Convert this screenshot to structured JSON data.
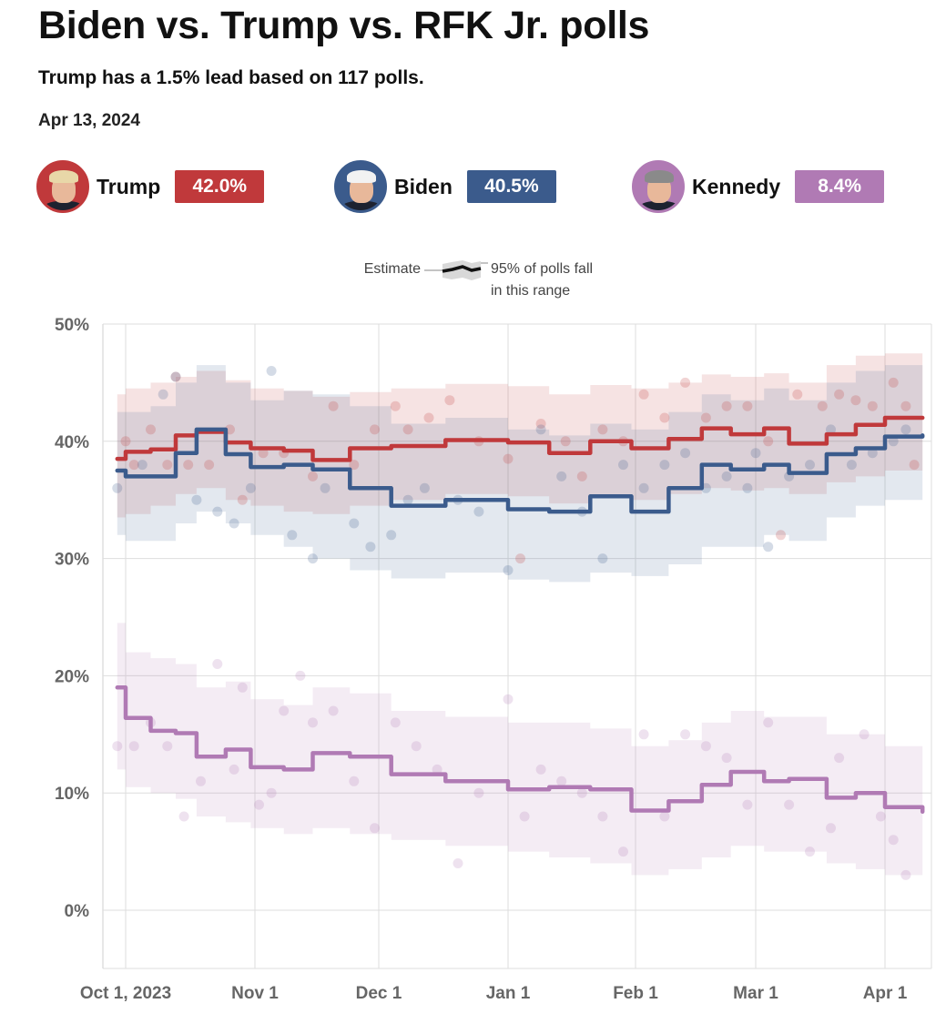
{
  "header": {
    "title": "Biden vs. Trump vs. RFK Jr. polls",
    "subtitle": "Trump has a 1.5% lead based on 117 polls.",
    "date": "Apr 13, 2024"
  },
  "candidates": [
    {
      "name": "Trump",
      "value_label": "42.0%",
      "color": "#c0393b",
      "hair": "#e8d7a8"
    },
    {
      "name": "Biden",
      "value_label": "40.5%",
      "color": "#3b5b8c",
      "hair": "#f2f2f2"
    },
    {
      "name": "Kennedy",
      "value_label": "8.4%",
      "color": "#b07ab4",
      "hair": "#8a8a8a"
    }
  ],
  "legend": {
    "estimate": "Estimate",
    "range_line1": "95% of polls fall",
    "range_line2": "in this range"
  },
  "chart_data": {
    "type": "line",
    "title": "Biden vs. Trump vs. RFK Jr. polls",
    "xlabel": "",
    "ylabel": "",
    "ylim": [
      -5,
      50
    ],
    "y_ticks": [
      0,
      10,
      20,
      30,
      40,
      50
    ],
    "y_tick_labels": [
      "0%",
      "10%",
      "20%",
      "30%",
      "40%",
      "50%"
    ],
    "x_range_days": [
      -2,
      192
    ],
    "x_ticks": [
      {
        "day": 0,
        "label": "Oct 1, 2023"
      },
      {
        "day": 31,
        "label": "Nov 1"
      },
      {
        "day": 61,
        "label": "Dec 1"
      },
      {
        "day": 92,
        "label": "Jan 1"
      },
      {
        "day": 123,
        "label": "Feb 1"
      },
      {
        "day": 152,
        "label": "Mar 1"
      },
      {
        "day": 183,
        "label": "Apr 1"
      }
    ],
    "series": [
      {
        "name": "Trump",
        "color": "#c0393b",
        "final": 42.0,
        "x": [
          -2,
          0,
          6,
          12,
          17,
          24,
          30,
          38,
          45,
          54,
          64,
          77,
          92,
          102,
          112,
          122,
          131,
          139,
          146,
          154,
          160,
          169,
          176,
          183,
          192
        ],
        "estimate": [
          38.5,
          39.1,
          39.3,
          40.5,
          40.8,
          39.9,
          39.4,
          39.2,
          38.4,
          39.4,
          39.6,
          40.1,
          39.9,
          39.0,
          40.0,
          39.4,
          40.2,
          41.1,
          40.6,
          41.1,
          39.8,
          40.6,
          41.4,
          42.0,
          42.0
        ],
        "lower": [
          33.5,
          33.8,
          34.5,
          35.5,
          36.0,
          35.0,
          34.5,
          34.0,
          33.8,
          34.5,
          35.0,
          35.5,
          35.3,
          34.7,
          35.2,
          35.0,
          35.5,
          36.0,
          35.8,
          36.0,
          35.5,
          36.5,
          37.0,
          37.5,
          37.5
        ],
        "upper": [
          44.0,
          44.5,
          45.0,
          45.5,
          46.0,
          45.2,
          44.5,
          44.3,
          43.8,
          44.2,
          44.5,
          44.9,
          44.7,
          44.0,
          44.8,
          44.5,
          45.0,
          45.7,
          45.5,
          45.8,
          45.0,
          46.5,
          47.3,
          47.5,
          47.5
        ],
        "polls": [
          [
            0,
            40
          ],
          [
            2,
            38
          ],
          [
            6,
            41
          ],
          [
            10,
            38
          ],
          [
            12,
            45.5
          ],
          [
            15,
            38
          ],
          [
            20,
            38
          ],
          [
            25,
            41
          ],
          [
            28,
            35
          ],
          [
            33,
            39
          ],
          [
            38,
            39
          ],
          [
            45,
            37
          ],
          [
            50,
            43
          ],
          [
            55,
            38
          ],
          [
            60,
            41
          ],
          [
            65,
            43
          ],
          [
            68,
            41
          ],
          [
            73,
            42
          ],
          [
            78,
            43.5
          ],
          [
            85,
            40
          ],
          [
            92,
            38.5
          ],
          [
            95,
            30
          ],
          [
            100,
            41.5
          ],
          [
            106,
            40
          ],
          [
            110,
            37
          ],
          [
            115,
            41
          ],
          [
            120,
            40
          ],
          [
            125,
            44
          ],
          [
            130,
            42
          ],
          [
            135,
            45
          ],
          [
            140,
            42
          ],
          [
            145,
            43
          ],
          [
            150,
            43
          ],
          [
            155,
            40
          ],
          [
            158,
            32
          ],
          [
            162,
            44
          ],
          [
            168,
            43
          ],
          [
            172,
            44
          ],
          [
            176,
            43.5
          ],
          [
            180,
            43
          ],
          [
            185,
            45
          ],
          [
            188,
            43
          ],
          [
            190,
            38
          ]
        ]
      },
      {
        "name": "Biden",
        "color": "#3b5b8c",
        "final": 40.5,
        "x": [
          -2,
          0,
          6,
          12,
          17,
          24,
          30,
          38,
          45,
          54,
          64,
          77,
          92,
          102,
          112,
          122,
          131,
          139,
          146,
          154,
          160,
          169,
          176,
          183,
          192
        ],
        "estimate": [
          37.5,
          37.0,
          37.0,
          39.0,
          41.0,
          38.9,
          37.8,
          38.0,
          37.6,
          36.0,
          34.5,
          35.0,
          34.2,
          34.0,
          35.3,
          34.0,
          36.0,
          38.0,
          37.6,
          38.0,
          37.3,
          38.9,
          39.4,
          40.4,
          40.5
        ],
        "lower": [
          32.0,
          31.5,
          31.5,
          33.0,
          34.0,
          33.0,
          32.0,
          31.0,
          30.0,
          29.0,
          28.3,
          28.8,
          28.2,
          28.0,
          28.8,
          28.5,
          29.5,
          31.0,
          31.0,
          32.0,
          31.5,
          33.5,
          34.5,
          35.0,
          35.0
        ],
        "upper": [
          42.5,
          42.5,
          43.0,
          45.0,
          46.5,
          45.0,
          43.5,
          44.3,
          44.0,
          43.0,
          41.5,
          42.0,
          41.0,
          40.5,
          41.5,
          41.0,
          42.5,
          44.0,
          43.5,
          44.5,
          43.5,
          45.0,
          46.0,
          46.5,
          46.5
        ],
        "polls": [
          [
            -2,
            36
          ],
          [
            4,
            38
          ],
          [
            9,
            44
          ],
          [
            12,
            45.5
          ],
          [
            17,
            35
          ],
          [
            22,
            34
          ],
          [
            26,
            33
          ],
          [
            30,
            36
          ],
          [
            35,
            46
          ],
          [
            40,
            32
          ],
          [
            45,
            30
          ],
          [
            48,
            36
          ],
          [
            55,
            33
          ],
          [
            59,
            31
          ],
          [
            64,
            32
          ],
          [
            68,
            35
          ],
          [
            72,
            36
          ],
          [
            80,
            35
          ],
          [
            85,
            34
          ],
          [
            92,
            29
          ],
          [
            100,
            41
          ],
          [
            105,
            37
          ],
          [
            110,
            34
          ],
          [
            115,
            30
          ],
          [
            120,
            38
          ],
          [
            125,
            36
          ],
          [
            130,
            38
          ],
          [
            135,
            39
          ],
          [
            140,
            36
          ],
          [
            145,
            37
          ],
          [
            150,
            36
          ],
          [
            152,
            39
          ],
          [
            155,
            31
          ],
          [
            160,
            37
          ],
          [
            165,
            38
          ],
          [
            170,
            41
          ],
          [
            175,
            38
          ],
          [
            180,
            39
          ],
          [
            185,
            40
          ],
          [
            188,
            41
          ]
        ]
      },
      {
        "name": "Kennedy",
        "color": "#b07ab4",
        "final": 8.4,
        "x": [
          -2,
          0,
          6,
          12,
          17,
          24,
          30,
          38,
          45,
          54,
          64,
          77,
          92,
          102,
          112,
          122,
          131,
          139,
          146,
          154,
          160,
          169,
          176,
          183,
          192
        ],
        "estimate": [
          19.0,
          16.4,
          15.3,
          15.1,
          13.1,
          13.7,
          12.2,
          12.0,
          13.4,
          13.1,
          11.6,
          11.0,
          10.3,
          10.5,
          10.3,
          8.5,
          9.3,
          10.7,
          11.8,
          11.0,
          11.2,
          9.6,
          10.0,
          8.8,
          8.4
        ],
        "lower": [
          12.0,
          10.5,
          10.0,
          9.5,
          8.0,
          7.5,
          7.0,
          6.5,
          7.0,
          6.5,
          6.0,
          5.5,
          5.0,
          4.5,
          4.0,
          3.0,
          3.5,
          4.5,
          5.5,
          5.0,
          5.0,
          4.0,
          3.5,
          3.0,
          2.8
        ],
        "upper": [
          24.5,
          22.0,
          21.5,
          21.0,
          19.0,
          19.5,
          18.0,
          17.5,
          19.0,
          18.5,
          17.0,
          16.5,
          16.0,
          16.0,
          15.5,
          14.0,
          14.5,
          16.0,
          17.0,
          16.5,
          16.5,
          15.0,
          15.0,
          14.0,
          14.0
        ],
        "polls": [
          [
            -2,
            14
          ],
          [
            2,
            14
          ],
          [
            6,
            16
          ],
          [
            10,
            14
          ],
          [
            14,
            8
          ],
          [
            18,
            11
          ],
          [
            22,
            21
          ],
          [
            26,
            12
          ],
          [
            28,
            19
          ],
          [
            32,
            9
          ],
          [
            35,
            10
          ],
          [
            38,
            17
          ],
          [
            42,
            20
          ],
          [
            45,
            16
          ],
          [
            50,
            17
          ],
          [
            55,
            11
          ],
          [
            60,
            7
          ],
          [
            65,
            16
          ],
          [
            70,
            14
          ],
          [
            75,
            12
          ],
          [
            80,
            4
          ],
          [
            85,
            10
          ],
          [
            92,
            18
          ],
          [
            96,
            8
          ],
          [
            100,
            12
          ],
          [
            105,
            11
          ],
          [
            110,
            10
          ],
          [
            115,
            8
          ],
          [
            120,
            5
          ],
          [
            125,
            15
          ],
          [
            130,
            8
          ],
          [
            135,
            15
          ],
          [
            140,
            14
          ],
          [
            145,
            13
          ],
          [
            150,
            9
          ],
          [
            155,
            16
          ],
          [
            160,
            9
          ],
          [
            165,
            5
          ],
          [
            170,
            7
          ],
          [
            172,
            13
          ],
          [
            178,
            15
          ],
          [
            182,
            8
          ],
          [
            185,
            6
          ],
          [
            188,
            3
          ]
        ]
      }
    ]
  }
}
